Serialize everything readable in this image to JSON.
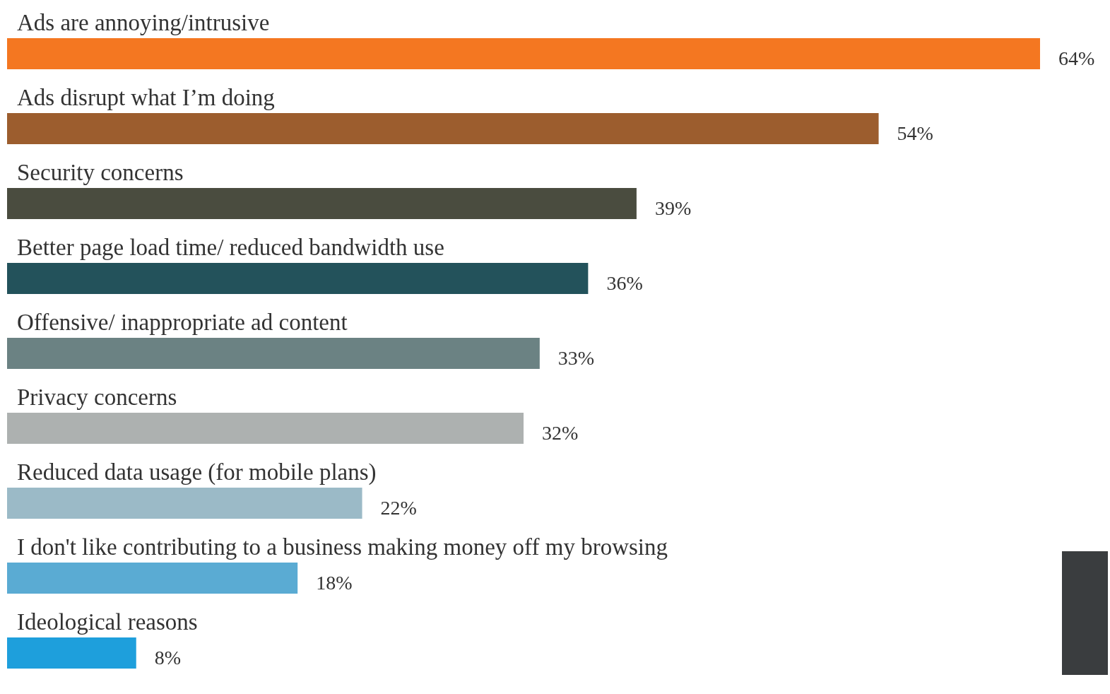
{
  "chart_data": {
    "type": "bar",
    "orientation": "horizontal",
    "value_labels": [
      "64%",
      "54%",
      "39%",
      "36%",
      "33%",
      "32%",
      "22%",
      "18%",
      "8%"
    ],
    "categories": [
      "Ads are annoying/intrusive",
      "Ads disrupt what I’m doing",
      "Security concerns",
      "Better page load time/ reduced bandwidth use",
      "Offensive/ inappropriate ad content",
      "Privacy concerns",
      "Reduced data usage (for mobile plans)",
      "I don't like contributing to a business making money off my browsing",
      "Ideological reasons"
    ],
    "values": [
      64,
      54,
      39,
      36,
      33,
      32,
      22,
      18,
      8
    ],
    "colors": [
      "#f47721",
      "#9c5d2e",
      "#4a4c3f",
      "#23525b",
      "#6b8283",
      "#adb1b0",
      "#9bbac7",
      "#5aabd3",
      "#1e9fdc"
    ]
  }
}
